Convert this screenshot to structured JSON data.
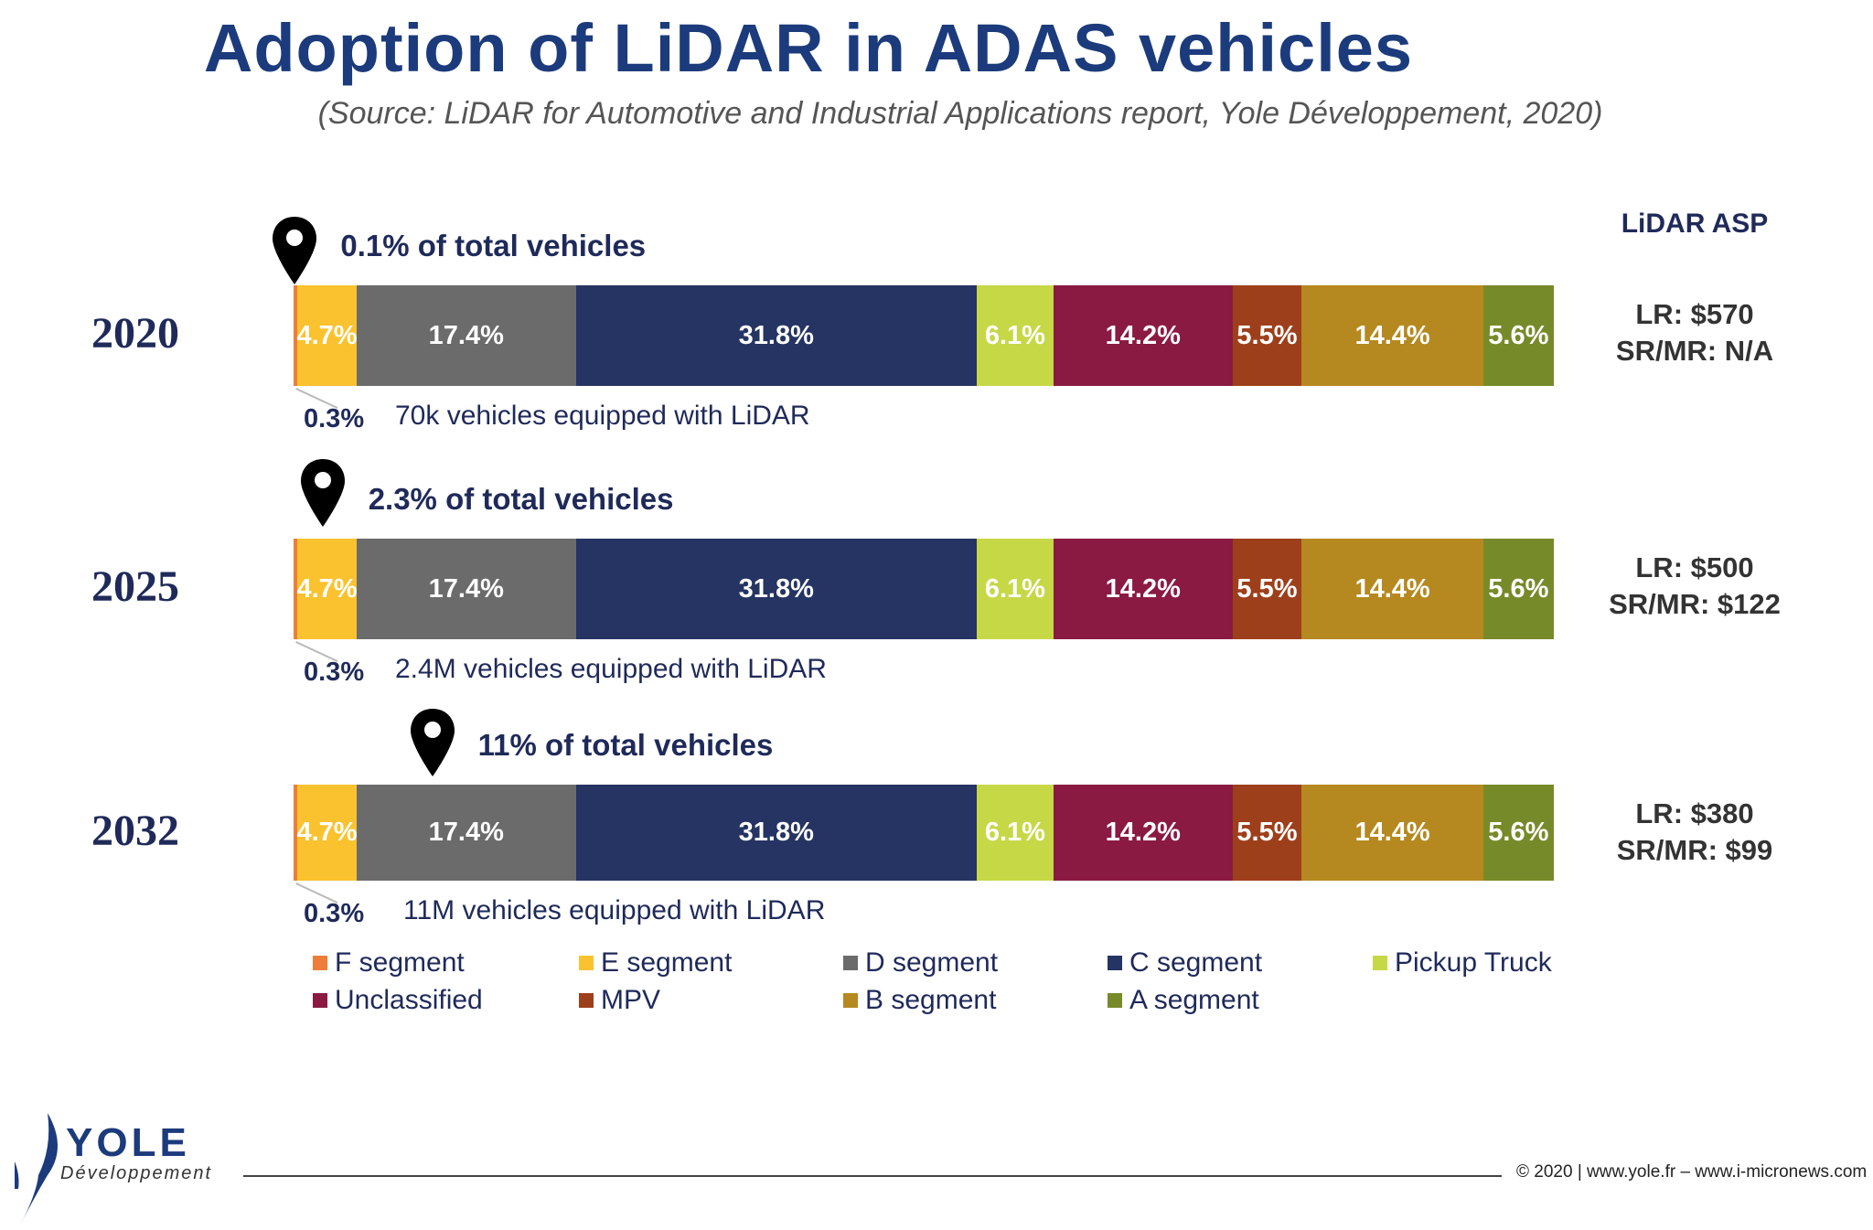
{
  "chart_data": {
    "type": "bar",
    "orientation": "horizontal-stacked-100",
    "title": "Adoption of LiDAR in ADAS vehicles",
    "subtitle": "(Source: LiDAR for Automotive and Industrial Applications report, Yole Développement, 2020)",
    "categories": [
      "2020",
      "2025",
      "2032"
    ],
    "series": [
      {
        "name": "F segment",
        "color": "#ee7d3a",
        "values": [
          0.3,
          0.3,
          0.3
        ],
        "labels": [
          "",
          "",
          ""
        ]
      },
      {
        "name": "E segment",
        "color": "#fbc22f",
        "values": [
          4.7,
          4.7,
          4.7
        ],
        "labels": [
          "4.7%",
          "4.7%",
          "4.7%"
        ]
      },
      {
        "name": "D segment",
        "color": "#6b6b6b",
        "values": [
          17.4,
          17.4,
          17.4
        ],
        "labels": [
          "17.4%",
          "17.4%",
          "17.4%"
        ]
      },
      {
        "name": "C segment",
        "color": "#253463",
        "values": [
          31.8,
          31.8,
          31.8
        ],
        "labels": [
          "31.8%",
          "31.8%",
          "31.8%"
        ]
      },
      {
        "name": "Pickup Truck",
        "color": "#c6d846",
        "values": [
          6.1,
          6.1,
          6.1
        ],
        "labels": [
          "6.1%",
          "6.1%",
          "6.1%"
        ]
      },
      {
        "name": "Unclassified",
        "color": "#8a1a41",
        "values": [
          14.2,
          14.2,
          14.2
        ],
        "labels": [
          "14.2%",
          "14.2%",
          "14.2%"
        ]
      },
      {
        "name": "MPV",
        "color": "#9e3f1b",
        "values": [
          5.5,
          5.5,
          5.5
        ],
        "labels": [
          "5.5%",
          "5.5%",
          "5.5%"
        ]
      },
      {
        "name": "B segment",
        "color": "#b5891f",
        "values": [
          14.4,
          14.4,
          14.4
        ],
        "labels": [
          "14.4%",
          "14.4%",
          "14.4%"
        ]
      },
      {
        "name": "A segment",
        "color": "#778a2a",
        "values": [
          5.6,
          5.6,
          5.6
        ],
        "labels": [
          "5.6%",
          "5.6%",
          "5.6%"
        ]
      }
    ],
    "rows": [
      {
        "year": "2020",
        "pin_label": "0.1% of total vehicles",
        "pin_value": 0.1,
        "f_label": "0.3%",
        "note": "70k vehicles equipped with LiDAR",
        "asp_lr": "LR: $570",
        "asp_srmr": "SR/MR: N/A"
      },
      {
        "year": "2025",
        "pin_label": "2.3% of total vehicles",
        "pin_value": 2.3,
        "f_label": "0.3%",
        "note": "2.4M vehicles equipped with LiDAR",
        "asp_lr": "LR: $500",
        "asp_srmr": "SR/MR: $122"
      },
      {
        "year": "2032",
        "pin_label": "11% of total vehicles",
        "pin_value": 11,
        "f_label": "0.3%",
        "note": "11M vehicles equipped with LiDAR",
        "asp_lr": "LR: $380",
        "asp_srmr": "SR/MR: $99"
      }
    ],
    "asp_title": "LiDAR ASP",
    "legend_placement": "bottom",
    "grid": false
  },
  "footer": {
    "copyright": "© 2020 | www.yole.fr – www.i-micronews.com",
    "logo_text": "YOLE",
    "logo_sub": "Développement"
  }
}
